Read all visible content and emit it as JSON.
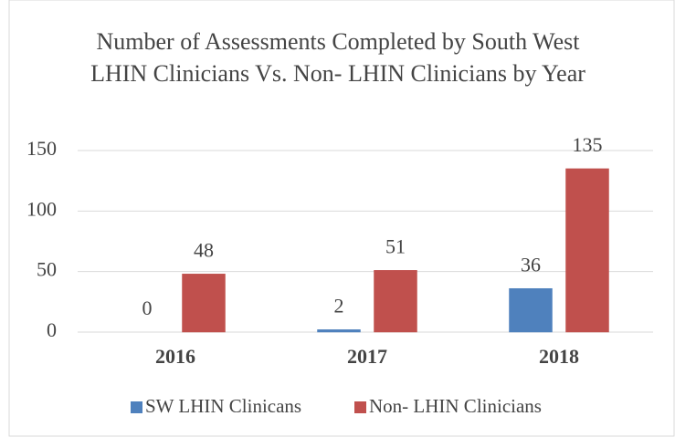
{
  "chart_data": {
    "type": "bar",
    "title": "Number of Assessments Completed by South West LHIN Clinicians Vs. Non- LHIN Clinicians by Year",
    "categories": [
      "2016",
      "2017",
      "2018"
    ],
    "series": [
      {
        "name": "SW LHIN Clinicans",
        "color": "#4f81bd",
        "values": [
          0,
          2,
          36
        ]
      },
      {
        "name": "Non- LHIN Clinicians",
        "color": "#c0504d",
        "values": [
          48,
          51,
          135
        ]
      }
    ],
    "ylim": [
      0,
      150
    ],
    "yticks": [
      0,
      50,
      100,
      150
    ],
    "grid": true,
    "legend": "bottom"
  }
}
